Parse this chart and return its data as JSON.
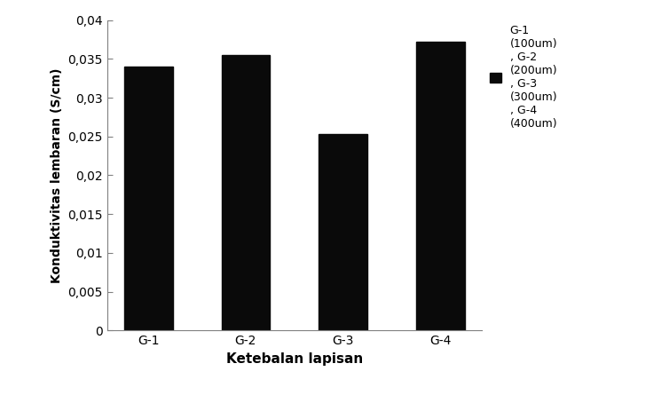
{
  "categories": [
    "G-1",
    "G-2",
    "G-3",
    "G-4"
  ],
  "values": [
    0.034,
    0.0355,
    0.0253,
    0.0372
  ],
  "bar_color": "#0a0a0a",
  "ylabel": "Konduktivitas lembaran (S/cm)",
  "xlabel": "Ketebalan lapisan",
  "ylim": [
    0,
    0.04
  ],
  "yticks": [
    0,
    0.005,
    0.01,
    0.015,
    0.02,
    0.025,
    0.03,
    0.035,
    0.04
  ],
  "ytick_labels": [
    "0",
    "0,005",
    "0,01",
    "0,015",
    "0,02",
    "0,025",
    "0,03",
    "0,035",
    "0,04"
  ],
  "legend_label": "G-1\n(100um)\n, G-2\n(200um)\n, G-3\n(300um)\n, G-4\n(400um)",
  "bar_width": 0.5,
  "background_color": "#ffffff"
}
